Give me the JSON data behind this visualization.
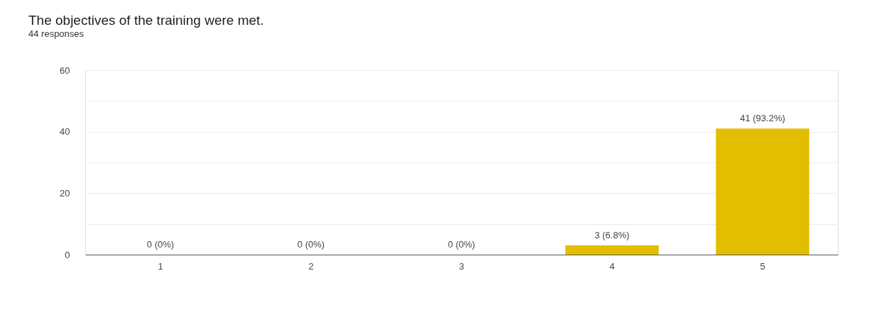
{
  "chart_data": {
    "type": "bar",
    "title": "The objectives of the training were met.",
    "subtitle": "44 responses",
    "categories": [
      "1",
      "2",
      "3",
      "4",
      "5"
    ],
    "values": [
      0,
      0,
      0,
      3,
      41
    ],
    "color": "#e2bd00",
    "value_labels": [
      "0 (0%)",
      "0 (0%)",
      "0 (0%)",
      "3 (6.8%)",
      "41 (93.2%)"
    ],
    "ylim": [
      0,
      60
    ],
    "yticks": [
      0,
      {
        "value": 10,
        "label": null
      },
      20,
      {
        "value": 30,
        "label": null
      },
      40,
      {
        "value": 50,
        "label": null
      },
      60
    ],
    "grid": "y"
  }
}
